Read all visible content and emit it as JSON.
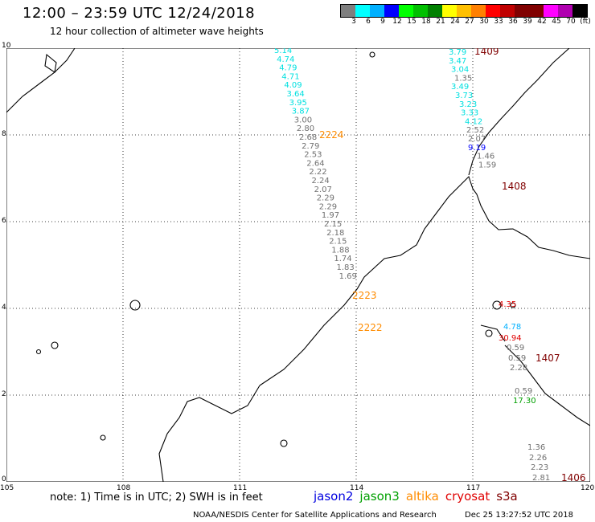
{
  "header": {
    "title": "12:00 – 23:59 UTC 12/24/2018",
    "subtitle": "12 hour collection of altimeter wave heights"
  },
  "legend": {
    "colors": [
      "#7f7f7f",
      "#00ffff",
      "#00b0ff",
      "#0000ff",
      "#00ff00",
      "#00c000",
      "#008000",
      "#ffff00",
      "#ffc000",
      "#ff8000",
      "#ff0000",
      "#c00000",
      "#800000",
      "#800000",
      "#ff00ff",
      "#b000b0",
      "#000000"
    ],
    "labels": [
      "3",
      "6",
      "9",
      "12",
      "15",
      "18",
      "21",
      "24",
      "27",
      "30",
      "33",
      "36",
      "39",
      "42",
      "45",
      "70",
      "(ft)"
    ]
  },
  "map": {
    "lon_ticks": [
      "105",
      "108",
      "111",
      "114",
      "117",
      "120"
    ],
    "lat_ticks": [
      "10",
      "8",
      "6",
      "4",
      "2",
      "0"
    ],
    "tracks": {
      "track_a": {
        "ids": [
          {
            "text": "2224",
            "color": "#ff8c00"
          },
          {
            "text": "2223",
            "color": "#ff8c00"
          },
          {
            "text": "2222",
            "color": "#ff8c00"
          }
        ],
        "values": [
          {
            "v": "5.14",
            "c": "#00e0e0"
          },
          {
            "v": "4.74",
            "c": "#00e0e0"
          },
          {
            "v": "4.79",
            "c": "#00e0e0"
          },
          {
            "v": "4.71",
            "c": "#00e0e0"
          },
          {
            "v": "4.09",
            "c": "#00e0e0"
          },
          {
            "v": "3.64",
            "c": "#00e0e0"
          },
          {
            "v": "3.95",
            "c": "#00e0e0"
          },
          {
            "v": "3.87",
            "c": "#00e0e0"
          },
          {
            "v": "3.00",
            "c": "#707070"
          },
          {
            "v": "2.80",
            "c": "#707070"
          },
          {
            "v": "2.68",
            "c": "#707070"
          },
          {
            "v": "2.79",
            "c": "#707070"
          },
          {
            "v": "2.53",
            "c": "#707070"
          },
          {
            "v": "2.64",
            "c": "#707070"
          },
          {
            "v": "2.22",
            "c": "#707070"
          },
          {
            "v": "2.24",
            "c": "#707070"
          },
          {
            "v": "2.07",
            "c": "#707070"
          },
          {
            "v": "2.29",
            "c": "#707070"
          },
          {
            "v": "2.29",
            "c": "#707070"
          },
          {
            "v": "1.97",
            "c": "#707070"
          },
          {
            "v": "2.15",
            "c": "#707070"
          },
          {
            "v": "2.18",
            "c": "#707070"
          },
          {
            "v": "2.15",
            "c": "#707070"
          },
          {
            "v": "1.88",
            "c": "#707070"
          },
          {
            "v": "1.74",
            "c": "#707070"
          },
          {
            "v": "1.83",
            "c": "#707070"
          },
          {
            "v": "1.69",
            "c": "#707070"
          }
        ]
      },
      "track_b": {
        "ids": [
          {
            "text": "1409",
            "color": "#800000"
          },
          {
            "text": "1408",
            "color": "#800000"
          }
        ],
        "values": [
          {
            "v": "3.79",
            "c": "#00e0e0"
          },
          {
            "v": "3.47",
            "c": "#00e0e0"
          },
          {
            "v": "3.04",
            "c": "#00e0e0"
          },
          {
            "v": "1.35",
            "c": "#707070"
          },
          {
            "v": "3.49",
            "c": "#00e0e0"
          },
          {
            "v": "3.73",
            "c": "#00e0e0"
          },
          {
            "v": "3.23",
            "c": "#00e0e0"
          },
          {
            "v": "3.33",
            "c": "#00e0e0"
          },
          {
            "v": "4.12",
            "c": "#00e0e0"
          },
          {
            "v": "2.52",
            "c": "#707070"
          },
          {
            "v": "2.07",
            "c": "#707070"
          },
          {
            "v": "9.19",
            "c": "#0000ff"
          },
          {
            "v": "1.46",
            "c": "#707070"
          },
          {
            "v": "1.59",
            "c": "#707070"
          }
        ]
      },
      "track_c": {
        "ids": [
          {
            "text": "1407",
            "color": "#800000"
          },
          {
            "text": "1406",
            "color": "#800000"
          }
        ],
        "values": [
          {
            "v": "4.35",
            "c": "#e00000"
          },
          {
            "v": "4.78",
            "c": "#00b0ff"
          },
          {
            "v": "30.94",
            "c": "#e00000"
          },
          {
            "v": "0.59",
            "c": "#707070"
          },
          {
            "v": "0.59",
            "c": "#707070"
          },
          {
            "v": "2.28",
            "c": "#707070"
          },
          {
            "v": "0.59",
            "c": "#707070"
          },
          {
            "v": "17.30",
            "c": "#00a000"
          },
          {
            "v": "1.36",
            "c": "#707070"
          },
          {
            "v": "2.26",
            "c": "#707070"
          },
          {
            "v": "2.23",
            "c": "#707070"
          },
          {
            "v": "2.81",
            "c": "#707070"
          }
        ]
      }
    }
  },
  "footer": {
    "note": "note:  1) Time is in UTC;  2) SWH is in feet",
    "satellites": [
      {
        "name": "jason2",
        "color": "#0000e0"
      },
      {
        "name": "jason3",
        "color": "#00a000"
      },
      {
        "name": "altika",
        "color": "#ff8c00"
      },
      {
        "name": "cryosat",
        "color": "#e00000"
      },
      {
        "name": "s3a",
        "color": "#800000"
      }
    ],
    "credit": "NOAA/NESDIS Center for Satellite Applications and Research",
    "timestamp": "Dec 25 13:27:52 UTC 2018"
  }
}
